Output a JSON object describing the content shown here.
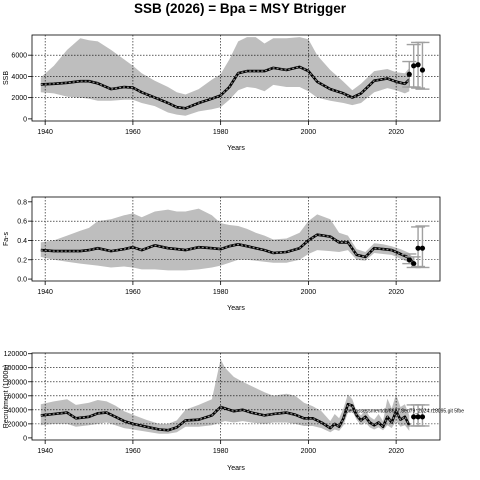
{
  "title": "SSB (2026)  = Bpa = MSY Btrigger",
  "colors": {
    "band": "#bebebe",
    "line": "#000000",
    "dash": "#8c8c8c",
    "forecast_bar": "#a0a0a0",
    "grid": "#000000"
  },
  "chart_data": [
    {
      "type": "area",
      "panel": "ssb",
      "xlabel": "Years",
      "ylabel": "SSB",
      "xlim": [
        1937,
        2030
      ],
      "ylim": [
        -200,
        7900
      ],
      "xticks": [
        1940,
        1960,
        1980,
        2000,
        2020
      ],
      "yticks": [
        0,
        2000,
        4000,
        6000
      ],
      "x_grid_major": [
        1940,
        1960,
        1980,
        2000,
        2020
      ],
      "y_grid": [
        2000,
        4000,
        6000
      ],
      "grid": true,
      "series": [
        {
          "x": [
            1939,
            1942,
            1945,
            1948,
            1950,
            1952,
            1955,
            1958,
            1960,
            1962,
            1965,
            1968,
            1970,
            1972,
            1975,
            1978,
            1980,
            1982,
            1984,
            1986,
            1988,
            1990,
            1992,
            1995,
            1998,
            2000,
            2002,
            2005,
            2008,
            2010,
            2012,
            2015,
            2018,
            2020,
            2022,
            2023
          ],
          "value": [
            3250,
            3300,
            3400,
            3550,
            3550,
            3350,
            2800,
            3000,
            2950,
            2500,
            2000,
            1500,
            1100,
            1000,
            1500,
            1900,
            2200,
            3000,
            4300,
            4500,
            4500,
            4500,
            4800,
            4600,
            4900,
            4500,
            3500,
            2800,
            2400,
            2000,
            2400,
            3600,
            3800,
            3500,
            3300,
            3700
          ],
          "upper": [
            3900,
            5000,
            6500,
            7600,
            7400,
            7300,
            6500,
            5600,
            5000,
            4300,
            3600,
            3000,
            2500,
            2300,
            2800,
            3700,
            4200,
            5600,
            7300,
            7700,
            7700,
            7100,
            7600,
            7600,
            7700,
            7500,
            6000,
            4600,
            3500,
            2700,
            3300,
            4500,
            4700,
            4400,
            4300,
            4800
          ],
          "lower": [
            2500,
            2400,
            2100,
            2000,
            1900,
            1700,
            1700,
            1800,
            1800,
            1500,
            1200,
            600,
            400,
            300,
            700,
            900,
            1100,
            1800,
            2700,
            3000,
            2900,
            2600,
            3200,
            3000,
            3000,
            2600,
            2000,
            1700,
            1500,
            1300,
            1500,
            2500,
            2900,
            2700,
            2400,
            2600
          ]
        }
      ],
      "forecast": {
        "x": [
          2023,
          2024,
          2025,
          2026
        ],
        "point": [
          4200,
          5000,
          5100,
          4600
        ],
        "ci_low": [
          3000,
          3000,
          2900,
          2800
        ],
        "ci_high": [
          5400,
          7000,
          7200,
          7200
        ]
      }
    },
    {
      "type": "area",
      "panel": "f",
      "xlabel": "Years",
      "ylabel": "Fa-s",
      "xlim": [
        1937,
        2030
      ],
      "ylim": [
        -0.02,
        0.85
      ],
      "xticks": [
        1940,
        1960,
        1980,
        2000,
        2020
      ],
      "yticks": [
        0.0,
        0.2,
        0.4,
        0.6,
        0.8
      ],
      "x_grid_major": [
        1940,
        1960,
        1980,
        2000,
        2020
      ],
      "y_grid": [
        0.2,
        0.4,
        0.6
      ],
      "grid": true,
      "series": [
        {
          "x": [
            1939,
            1942,
            1945,
            1948,
            1950,
            1952,
            1955,
            1958,
            1960,
            1962,
            1965,
            1968,
            1970,
            1972,
            1975,
            1978,
            1980,
            1982,
            1984,
            1986,
            1988,
            1990,
            1992,
            1995,
            1998,
            2000,
            2002,
            2005,
            2007,
            2009,
            2011,
            2013,
            2015,
            2017,
            2019,
            2021,
            2023,
            2024
          ],
          "value": [
            0.3,
            0.29,
            0.29,
            0.29,
            0.3,
            0.32,
            0.29,
            0.31,
            0.33,
            0.3,
            0.35,
            0.32,
            0.31,
            0.3,
            0.33,
            0.32,
            0.31,
            0.34,
            0.36,
            0.34,
            0.32,
            0.3,
            0.27,
            0.28,
            0.32,
            0.4,
            0.46,
            0.44,
            0.38,
            0.38,
            0.25,
            0.23,
            0.32,
            0.31,
            0.3,
            0.26,
            0.22,
            0.16
          ],
          "upper": [
            0.38,
            0.4,
            0.45,
            0.5,
            0.53,
            0.6,
            0.62,
            0.66,
            0.68,
            0.64,
            0.7,
            0.72,
            0.7,
            0.7,
            0.73,
            0.66,
            0.58,
            0.56,
            0.55,
            0.52,
            0.48,
            0.45,
            0.41,
            0.42,
            0.48,
            0.6,
            0.67,
            0.62,
            0.48,
            0.45,
            0.31,
            0.28,
            0.37,
            0.36,
            0.34,
            0.31,
            0.27,
            0.21
          ],
          "lower": [
            0.23,
            0.2,
            0.18,
            0.16,
            0.15,
            0.14,
            0.12,
            0.13,
            0.12,
            0.1,
            0.1,
            0.09,
            0.09,
            0.09,
            0.1,
            0.12,
            0.14,
            0.17,
            0.2,
            0.2,
            0.19,
            0.18,
            0.17,
            0.17,
            0.2,
            0.26,
            0.3,
            0.29,
            0.28,
            0.3,
            0.2,
            0.19,
            0.27,
            0.26,
            0.25,
            0.21,
            0.17,
            0.12
          ]
        }
      ],
      "forecast": {
        "x": [
          2023,
          2024,
          2025,
          2026
        ],
        "point": [
          0.2,
          0.16,
          0.32,
          0.32
        ],
        "ci_low": [
          0.16,
          0.12,
          0.13,
          0.12
        ],
        "ci_high": [
          0.26,
          0.23,
          0.54,
          0.55
        ]
      }
    },
    {
      "type": "area",
      "panel": "recruitment",
      "xlabel": "Years",
      "ylabel": "Recruitment (1000s)",
      "annotation": "ices.assessmentdb/8627.8ed79_2024.r18095.git 5fbe",
      "xlim": [
        1937,
        2030
      ],
      "ylim": [
        -3000,
        121000
      ],
      "xticks": [
        1940,
        1960,
        1980,
        2000,
        2020
      ],
      "yticks": [
        0,
        20000,
        40000,
        60000,
        80000,
        100000,
        120000
      ],
      "x_grid_major": [
        1940,
        1960,
        1980,
        2000,
        2020
      ],
      "y_grid": [
        20000,
        40000,
        60000,
        80000,
        100000
      ],
      "grid": true,
      "series": [
        {
          "x": [
            1939,
            1942,
            1945,
            1947,
            1950,
            1952,
            1954,
            1956,
            1958,
            1960,
            1963,
            1966,
            1968,
            1970,
            1972,
            1975,
            1978,
            1980,
            1981,
            1983,
            1985,
            1987,
            1990,
            1992,
            1995,
            1997,
            1999,
            2001,
            2003,
            2005,
            2006,
            2007,
            2008,
            2009,
            2010,
            2011,
            2012,
            2013,
            2014,
            2015,
            2016,
            2017,
            2018,
            2019,
            2020,
            2021,
            2022,
            2023
          ],
          "value": [
            32000,
            34000,
            36000,
            28000,
            30000,
            35000,
            36000,
            30000,
            24000,
            20000,
            16000,
            12000,
            11000,
            15000,
            25000,
            26000,
            32000,
            44000,
            42000,
            38000,
            40000,
            36000,
            32000,
            34000,
            36000,
            33000,
            28000,
            28000,
            22000,
            14000,
            20000,
            16000,
            28000,
            48000,
            46000,
            32000,
            25000,
            30000,
            22000,
            18000,
            22000,
            16000,
            30000,
            22000,
            38000,
            26000,
            30000,
            18000
          ],
          "upper": [
            48000,
            52000,
            55000,
            47000,
            50000,
            54000,
            52000,
            46000,
            38000,
            33000,
            26000,
            20000,
            20000,
            25000,
            40000,
            47000,
            55000,
            112000,
            100000,
            87000,
            80000,
            74000,
            65000,
            60000,
            63000,
            60000,
            50000,
            45000,
            38000,
            24000,
            34000,
            28000,
            42000,
            62000,
            55000,
            38000,
            32000,
            40000,
            30000,
            26000,
            34000,
            24000,
            56000,
            42000,
            62000,
            44000,
            48000,
            32000
          ],
          "lower": [
            18000,
            20000,
            20000,
            16000,
            18000,
            20000,
            22000,
            18000,
            14000,
            12000,
            9000,
            6000,
            6000,
            8000,
            16000,
            16000,
            18000,
            22000,
            24000,
            22000,
            24000,
            22000,
            20000,
            22000,
            22000,
            20000,
            17000,
            17000,
            14000,
            8000,
            12000,
            10000,
            18000,
            36000,
            38000,
            26000,
            18000,
            22000,
            15000,
            12000,
            15000,
            11000,
            18000,
            14000,
            24000,
            16000,
            18000,
            10000
          ]
        }
      ],
      "forecast": {
        "x": [
          2024,
          2025,
          2026
        ],
        "point": [
          30000,
          30000,
          30000
        ],
        "ci_low": [
          17000,
          17000,
          17000
        ],
        "ci_high": [
          47000,
          47000,
          47000
        ]
      }
    }
  ]
}
